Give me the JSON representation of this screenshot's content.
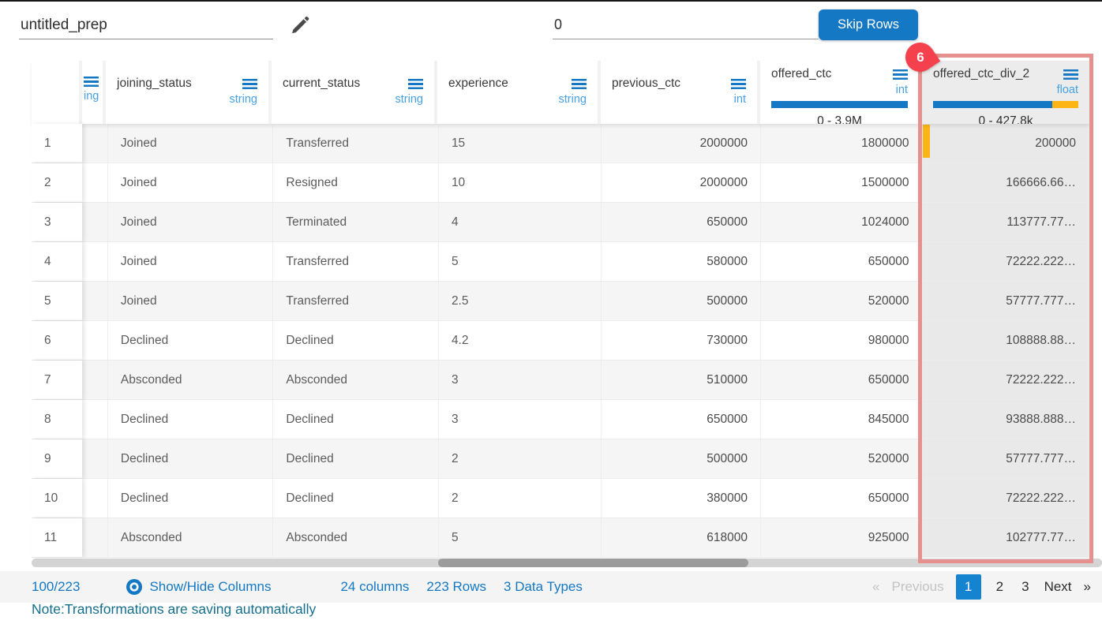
{
  "topbar": {
    "prep_name": "untitled_prep",
    "skip_rows_value": "0",
    "skip_rows_button": "Skip Rows"
  },
  "table": {
    "columns": [
      {
        "key": "rownum",
        "name": "",
        "type": ""
      },
      {
        "key": "truncated",
        "name": "",
        "type": "ing"
      },
      {
        "key": "joining_status",
        "name": "joining_status",
        "type": "string"
      },
      {
        "key": "current_status",
        "name": "current_status",
        "type": "string"
      },
      {
        "key": "experience",
        "name": "experience",
        "type": "string"
      },
      {
        "key": "previous_ctc",
        "name": "previous_ctc",
        "type": "int"
      },
      {
        "key": "offered_ctc",
        "name": "offered_ctc",
        "type": "int",
        "range": "0 - 3.9M",
        "bar": {
          "blue_pct": 100,
          "yellow_pct": 0
        }
      },
      {
        "key": "offered_ctc_div_2",
        "name": "offered_ctc_div_2",
        "type": "float",
        "range": "0 - 427.8k",
        "bar": {
          "blue_pct": 82,
          "yellow_pct": 18
        },
        "highlighted": true
      }
    ],
    "highlight_badge": "6",
    "rows": [
      {
        "num": "1",
        "joining_status": "Joined",
        "current_status": "Transferred",
        "experience": "15",
        "previous_ctc": "2000000",
        "offered_ctc": "1800000",
        "offered_ctc_div_2": "200000",
        "marker": true
      },
      {
        "num": "2",
        "joining_status": "Joined",
        "current_status": "Resigned",
        "experience": "10",
        "previous_ctc": "2000000",
        "offered_ctc": "1500000",
        "offered_ctc_div_2": "166666.66…"
      },
      {
        "num": "3",
        "joining_status": "Joined",
        "current_status": "Terminated",
        "experience": "4",
        "previous_ctc": "650000",
        "offered_ctc": "1024000",
        "offered_ctc_div_2": "113777.77…"
      },
      {
        "num": "4",
        "joining_status": "Joined",
        "current_status": "Transferred",
        "experience": "5",
        "previous_ctc": "580000",
        "offered_ctc": "650000",
        "offered_ctc_div_2": "72222.222…"
      },
      {
        "num": "5",
        "joining_status": "Joined",
        "current_status": "Transferred",
        "experience": "2.5",
        "previous_ctc": "500000",
        "offered_ctc": "520000",
        "offered_ctc_div_2": "57777.777…"
      },
      {
        "num": "6",
        "joining_status": "Declined",
        "current_status": "Declined",
        "experience": "4.2",
        "previous_ctc": "730000",
        "offered_ctc": "980000",
        "offered_ctc_div_2": "108888.88…"
      },
      {
        "num": "7",
        "joining_status": "Absconded",
        "current_status": "Absconded",
        "experience": "3",
        "previous_ctc": "510000",
        "offered_ctc": "650000",
        "offered_ctc_div_2": "72222.222…"
      },
      {
        "num": "8",
        "joining_status": "Declined",
        "current_status": "Declined",
        "experience": "3",
        "previous_ctc": "650000",
        "offered_ctc": "845000",
        "offered_ctc_div_2": "93888.888…"
      },
      {
        "num": "9",
        "joining_status": "Declined",
        "current_status": "Declined",
        "experience": "2",
        "previous_ctc": "500000",
        "offered_ctc": "520000",
        "offered_ctc_div_2": "57777.777…"
      },
      {
        "num": "10",
        "joining_status": "Declined",
        "current_status": "Declined",
        "experience": "2",
        "previous_ctc": "380000",
        "offered_ctc": "650000",
        "offered_ctc_div_2": "72222.222…"
      },
      {
        "num": "11",
        "joining_status": "Absconded",
        "current_status": "Absconded",
        "experience": "5",
        "previous_ctc": "618000",
        "offered_ctc": "925000",
        "offered_ctc_div_2": "102777.77…"
      }
    ]
  },
  "footer": {
    "progress": "100/223",
    "show_hide_label": "Show/Hide Columns",
    "columns_count": "24 columns",
    "rows_count": "223 Rows",
    "data_types": "3 Data Types",
    "pagination": {
      "prev_arrow": "«",
      "previous": "Previous",
      "pages": [
        "1",
        "2",
        "3"
      ],
      "active_page": "1",
      "next": "Next",
      "next_arrow": "»"
    }
  },
  "note": "Note:Transformations are saving automatically",
  "colors": {
    "accent_blue": "#1478c4",
    "type_label_blue": "#46a1e6",
    "bar_yellow": "#fcb515",
    "highlight_border": "#e79090",
    "badge_red": "#f4414d",
    "active_page_blue": "#1584d0",
    "note_teal": "#156f8c",
    "stripe_gray": "#f5f5f5",
    "highlight_cell_gray": "#e9e9e9"
  }
}
